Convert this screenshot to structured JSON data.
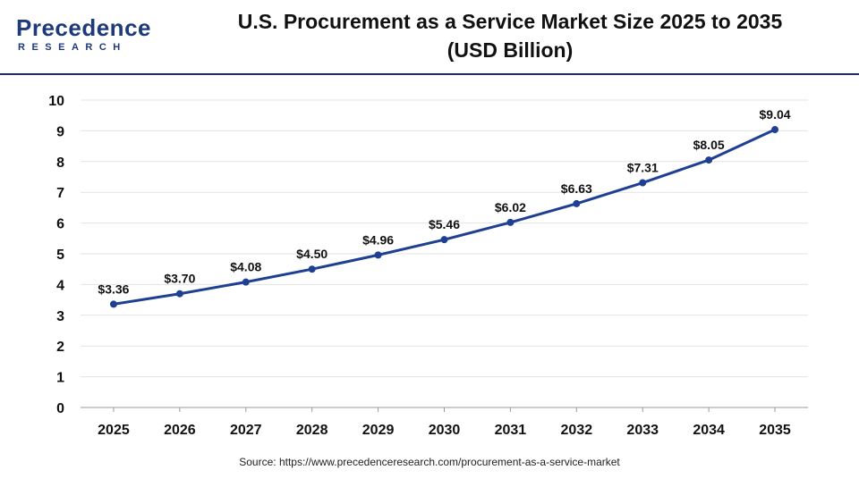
{
  "brand": {
    "name": "Precedence",
    "sub": "RESEARCH"
  },
  "chart_data": {
    "type": "line",
    "title": "U.S. Procurement as a Service Market Size 2025 to 2035",
    "subtitle": "(USD Billion)",
    "categories": [
      "2025",
      "2026",
      "2027",
      "2028",
      "2029",
      "2030",
      "2031",
      "2032",
      "2033",
      "2034",
      "2035"
    ],
    "series": [
      {
        "values": [
          3.36,
          3.7,
          4.08,
          4.5,
          4.96,
          5.46,
          6.02,
          6.63,
          7.31,
          8.05,
          9.04
        ],
        "labels": [
          "$3.36",
          "$3.70",
          "$4.08",
          "$4.50",
          "$4.96",
          "$5.46",
          "$6.02",
          "$6.63",
          "$7.31",
          "$8.05",
          "$9.04"
        ],
        "color": "#1f3f93"
      }
    ],
    "xlabel": "",
    "ylabel": "",
    "ylim": [
      0,
      10
    ],
    "yticks": [
      0,
      1,
      2,
      3,
      4,
      5,
      6,
      7,
      8,
      9,
      10
    ],
    "grid": true,
    "legend": "none"
  },
  "footer": {
    "source": "Source: https://www.precedenceresearch.com/procurement-as-a-service-market"
  }
}
